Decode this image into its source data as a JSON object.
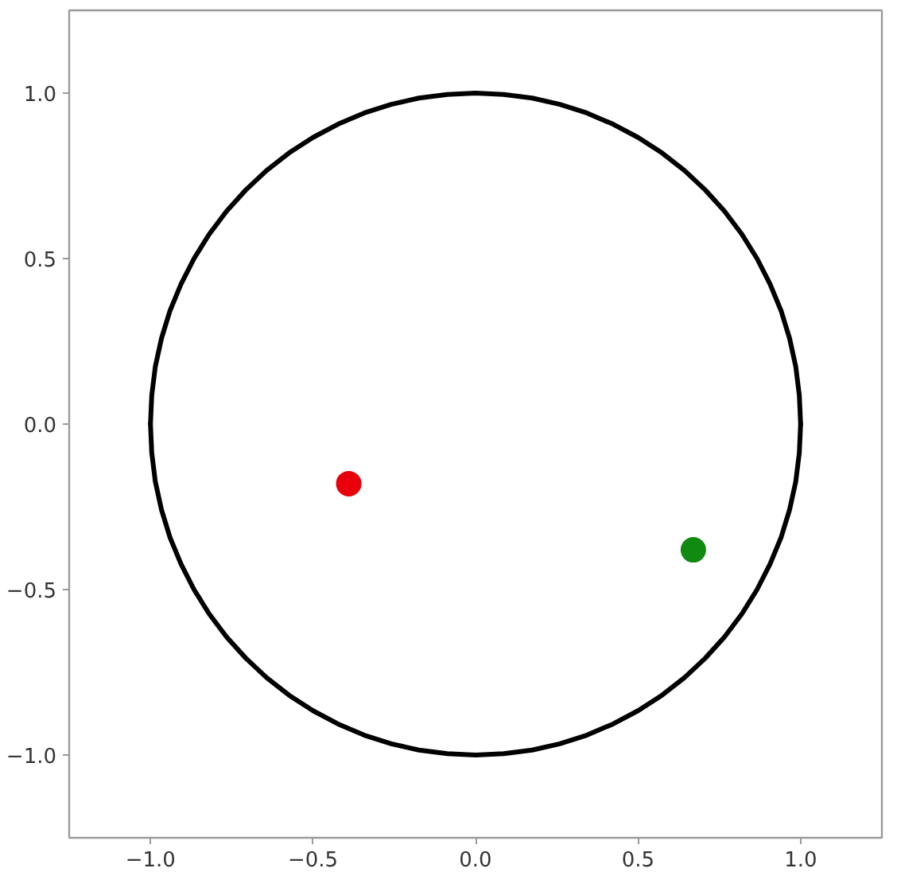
{
  "chart_data": {
    "type": "scatter",
    "xlim": [
      -1.25,
      1.25
    ],
    "ylim": [
      -1.25,
      1.25
    ],
    "xticks": [
      {
        "value": -1.0,
        "label": "−1.0"
      },
      {
        "value": -0.5,
        "label": "−0.5"
      },
      {
        "value": 0.0,
        "label": "0.0"
      },
      {
        "value": 0.5,
        "label": "0.5"
      },
      {
        "value": 1.0,
        "label": "1.0"
      }
    ],
    "yticks": [
      {
        "value": -1.0,
        "label": "−1.0"
      },
      {
        "value": -0.5,
        "label": "−0.5"
      },
      {
        "value": 0.0,
        "label": "0.0"
      },
      {
        "value": 0.5,
        "label": "0.5"
      },
      {
        "value": 1.0,
        "label": "1.0"
      }
    ],
    "grid": false,
    "marker": "circle",
    "series": [
      {
        "type": "line",
        "color": "#000000",
        "marker": "none",
        "x": [
          -1.0,
          -0.996,
          -0.985,
          -0.966,
          -0.94,
          -0.906,
          -0.866,
          -0.819,
          -0.766,
          -0.707,
          -0.643,
          -0.574,
          -0.5,
          -0.423,
          -0.342,
          -0.259,
          -0.174,
          -0.087,
          0.0,
          0.087,
          0.174,
          0.259,
          0.342,
          0.423,
          0.5,
          0.574,
          0.643,
          0.707,
          0.766,
          0.819,
          0.866,
          0.906,
          0.94,
          0.966,
          0.985,
          0.996,
          1.0
        ],
        "values": [
          0.0,
          0.087,
          0.174,
          0.259,
          0.342,
          0.423,
          0.5,
          0.574,
          0.643,
          0.707,
          0.766,
          0.819,
          0.866,
          0.906,
          0.94,
          0.966,
          0.985,
          0.996,
          1.0,
          0.996,
          0.985,
          0.966,
          0.94,
          0.906,
          0.866,
          0.819,
          0.766,
          0.707,
          0.643,
          0.574,
          0.5,
          0.423,
          0.342,
          0.259,
          0.174,
          0.087,
          0.0
        ]
      },
      {
        "type": "line",
        "color": "#000000",
        "marker": "none",
        "x": [
          -1.0,
          -0.996,
          -0.985,
          -0.966,
          -0.94,
          -0.906,
          -0.866,
          -0.819,
          -0.766,
          -0.707,
          -0.643,
          -0.574,
          -0.5,
          -0.423,
          -0.342,
          -0.259,
          -0.174,
          -0.087,
          0.0,
          0.087,
          0.174,
          0.259,
          0.342,
          0.423,
          0.5,
          0.574,
          0.643,
          0.707,
          0.766,
          0.819,
          0.866,
          0.906,
          0.94,
          0.966,
          0.985,
          0.996,
          1.0
        ],
        "values": [
          0.0,
          -0.087,
          -0.174,
          -0.259,
          -0.342,
          -0.423,
          -0.5,
          -0.574,
          -0.643,
          -0.707,
          -0.766,
          -0.819,
          -0.866,
          -0.906,
          -0.94,
          -0.966,
          -0.985,
          -0.996,
          -1.0,
          -0.996,
          -0.985,
          -0.966,
          -0.94,
          -0.906,
          -0.866,
          -0.819,
          -0.766,
          -0.707,
          -0.643,
          -0.574,
          -0.5,
          -0.423,
          -0.342,
          -0.259,
          -0.174,
          -0.087,
          0.0
        ]
      },
      {
        "color": "#e8000b",
        "x": [
          -0.39
        ],
        "values": [
          -0.18
        ]
      },
      {
        "color": "#118a11",
        "x": [
          0.67
        ],
        "values": [
          -0.38
        ]
      }
    ]
  }
}
